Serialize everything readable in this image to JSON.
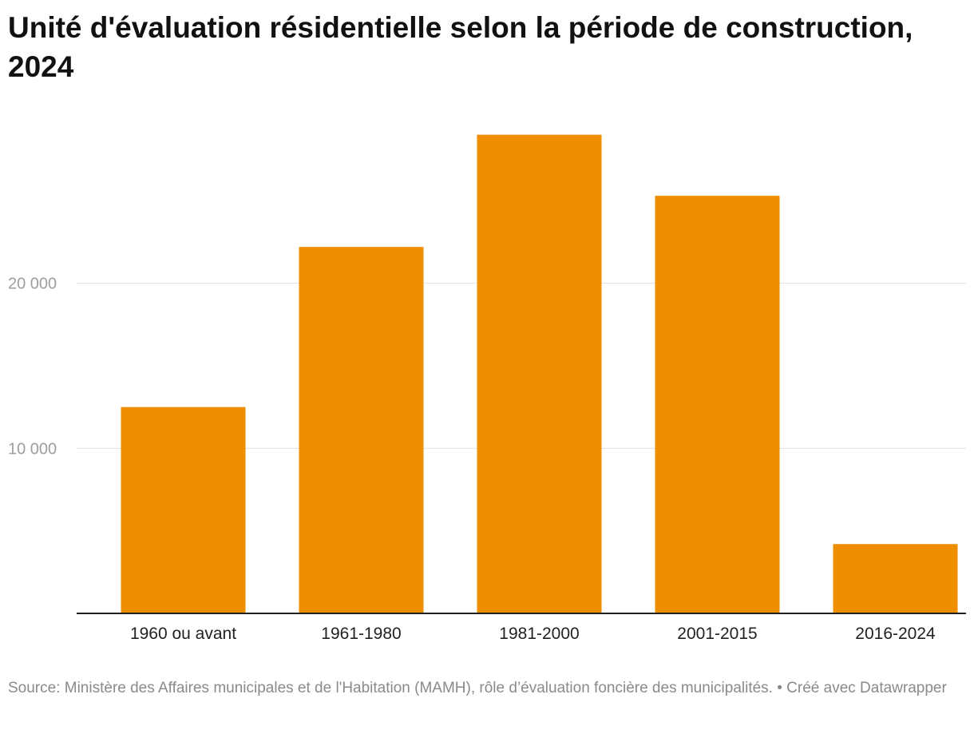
{
  "chart_data": {
    "type": "bar",
    "title": "Unité d'évaluation résidentielle selon la période de construction, 2024",
    "categories": [
      "1960 ou avant",
      "1961-1980",
      "1981-2000",
      "2001-2015",
      "2016-2024"
    ],
    "values": [
      12500,
      22200,
      29000,
      25300,
      4200
    ],
    "ylim": [
      0,
      30000
    ],
    "yticks": [
      10000,
      20000
    ],
    "ytick_labels": [
      "10 000",
      "20 000"
    ],
    "xlabel": "",
    "ylabel": "",
    "grid": true,
    "legend": "none"
  },
  "colors": {
    "bar": "#ef8f00",
    "grid": "#e0e0e0",
    "axis": "#222222",
    "tick_label": "#9e9e9e",
    "category_label": "#222222"
  },
  "footer": {
    "source": "Source: Ministère des Affaires municipales et de l'Habitation (MAMH), rôle d’évaluation foncière des municipalités.",
    "credit": "• Créé avec Datawrapper"
  }
}
